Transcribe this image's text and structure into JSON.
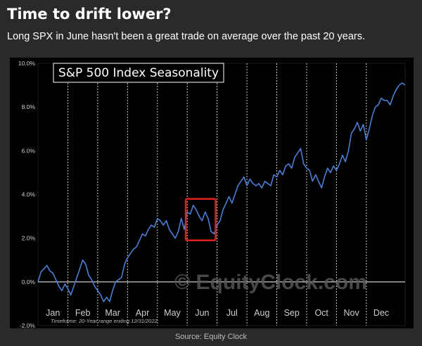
{
  "header": {
    "title": "Time to drift lower?",
    "subtitle": "Long SPX in June hasn't been a great trade on average over the past 20 years."
  },
  "source": "Source: Equity Clock",
  "chart_data": {
    "type": "line",
    "title": "S&P 500 Index Seasonality",
    "footnote": "Timeframe: 20-Year range ending 12/31/2022",
    "watermark": "EquityClock.com",
    "ylim": [
      -2.0,
      10.0
    ],
    "yticks": [
      {
        "value": -2.0,
        "label": "-2.0%"
      },
      {
        "value": 0.0,
        "label": "0.0%"
      },
      {
        "value": 2.0,
        "label": "2.0%"
      },
      {
        "value": 4.0,
        "label": "4.0%"
      },
      {
        "value": 6.0,
        "label": "6.0%"
      },
      {
        "value": 8.0,
        "label": "8.0%"
      },
      {
        "value": 10.0,
        "label": "10.0%"
      }
    ],
    "xlim": [
      0,
      12.3
    ],
    "months": [
      "Jan",
      "Feb",
      "Mar",
      "Apr",
      "May",
      "Jun",
      "Jul",
      "Aug",
      "Sep",
      "Oct",
      "Nov",
      "Dec"
    ],
    "grid": "vertical dashed month dividers",
    "line_color": "#4a7fd4",
    "highlight": {
      "x_start": 4.95,
      "x_end": 5.95,
      "y_start": 1.9,
      "y_end": 3.8,
      "color": "#e0201c"
    },
    "series": [
      {
        "x": [
          0.0,
          0.1,
          0.2,
          0.3,
          0.4,
          0.5,
          0.6,
          0.7,
          0.8,
          0.9,
          1.0,
          1.1,
          1.2,
          1.3,
          1.4,
          1.5,
          1.6,
          1.7,
          1.8,
          1.9,
          2.0,
          2.1,
          2.2,
          2.3,
          2.4,
          2.5,
          2.6,
          2.7,
          2.8,
          2.9,
          3.0,
          3.1,
          3.2,
          3.3,
          3.4,
          3.5,
          3.6,
          3.7,
          3.8,
          3.9,
          4.0,
          4.1,
          4.2,
          4.3,
          4.4,
          4.5,
          4.6,
          4.7,
          4.8,
          4.9,
          5.0,
          5.1,
          5.2,
          5.3,
          5.4,
          5.5,
          5.6,
          5.7,
          5.8,
          5.9,
          6.0,
          6.1,
          6.2,
          6.3,
          6.4,
          6.5,
          6.6,
          6.7,
          6.8,
          6.9,
          7.0,
          7.1,
          7.2,
          7.3,
          7.4,
          7.5,
          7.6,
          7.7,
          7.8,
          7.9,
          8.0,
          8.1,
          8.2,
          8.3,
          8.4,
          8.5,
          8.6,
          8.7,
          8.8,
          8.9,
          9.0,
          9.1,
          9.2,
          9.3,
          9.4,
          9.5,
          9.6,
          9.7,
          9.8,
          9.9,
          10.0,
          10.1,
          10.2,
          10.3,
          10.4,
          10.5,
          10.6,
          10.7,
          10.8,
          10.9,
          11.0,
          11.1,
          11.2,
          11.3,
          11.4,
          11.5,
          11.6,
          11.7,
          11.8,
          11.9,
          12.0,
          12.1,
          12.2,
          12.3
        ],
        "y": [
          0.0,
          0.45,
          0.6,
          0.75,
          0.5,
          0.4,
          0.1,
          -0.2,
          -0.4,
          -0.1,
          -0.3,
          -0.6,
          -0.2,
          0.2,
          0.6,
          1.0,
          0.8,
          0.3,
          0.1,
          -0.2,
          -0.4,
          -0.6,
          -0.9,
          -0.7,
          -0.9,
          -0.4,
          0.0,
          0.1,
          0.2,
          0.8,
          1.1,
          1.3,
          1.5,
          1.6,
          1.9,
          2.2,
          2.1,
          2.4,
          2.6,
          2.5,
          2.9,
          2.8,
          2.6,
          2.8,
          2.4,
          2.2,
          2.0,
          2.3,
          2.9,
          2.4,
          3.2,
          3.1,
          3.5,
          3.3,
          3.0,
          2.8,
          3.2,
          2.9,
          2.3,
          2.2,
          2.6,
          2.8,
          3.3,
          3.6,
          3.9,
          3.6,
          4.0,
          4.4,
          4.6,
          4.8,
          4.4,
          4.7,
          4.5,
          4.4,
          4.5,
          4.3,
          4.6,
          4.5,
          4.4,
          4.9,
          4.8,
          5.1,
          4.9,
          5.3,
          5.4,
          5.2,
          5.7,
          5.9,
          6.1,
          5.4,
          5.2,
          5.1,
          4.6,
          4.9,
          4.6,
          4.3,
          4.8,
          5.2,
          5.0,
          5.3,
          5.1,
          5.4,
          5.8,
          5.5,
          6.0,
          6.8,
          7.0,
          7.3,
          6.9,
          7.2,
          6.5,
          7.0,
          7.6,
          8.0,
          8.1,
          8.4,
          8.3,
          8.3,
          8.1,
          8.5,
          8.8,
          9.0,
          9.1,
          9.0
        ]
      }
    ]
  }
}
